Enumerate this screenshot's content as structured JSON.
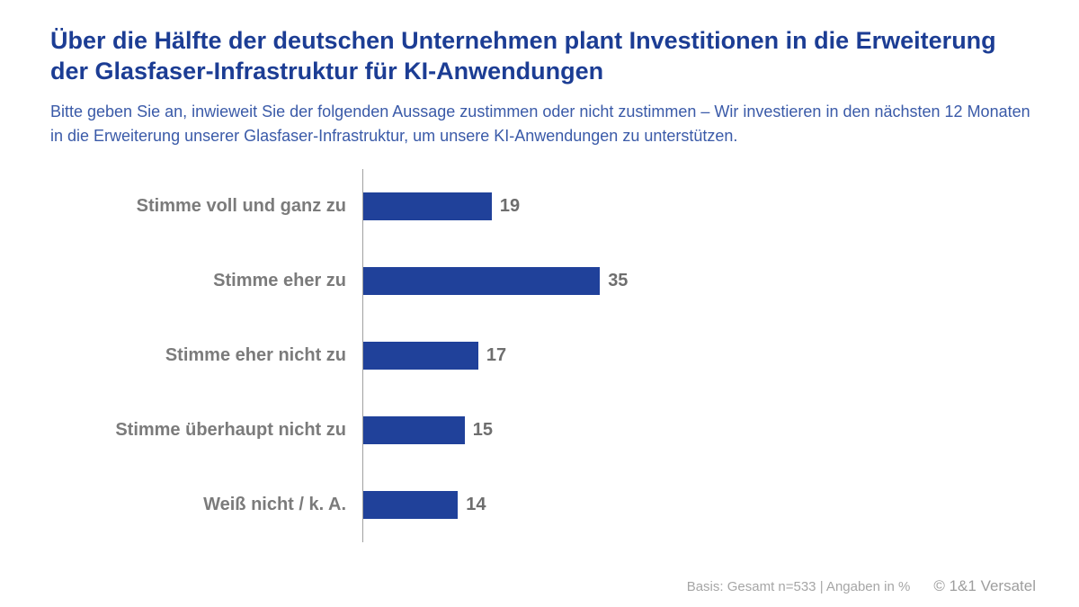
{
  "header": {
    "title": "Über die Hälfte der deutschen Unternehmen plant Investitionen in die Erweiterung der Glasfaser-Infrastruktur für KI-Anwendungen",
    "subtitle": "Bitte geben Sie an, inwieweit Sie der folgenden Aussage zustimmen oder nicht zustimmen – Wir investieren in den nächsten 12 Monaten in die Erweiterung unserer Glasfaser-Infrastruktur, um unsere KI-Anwendungen zu unterstützen."
  },
  "chart_data": {
    "type": "bar",
    "orientation": "horizontal",
    "categories": [
      "Stimme voll und ganz zu",
      "Stimme eher zu",
      "Stimme eher nicht zu",
      "Stimme überhaupt nicht zu",
      "Weiß nicht / k. A."
    ],
    "values": [
      19,
      35,
      17,
      15,
      14
    ],
    "xlim": [
      0,
      100
    ],
    "unit": "%",
    "grid": false,
    "legend": "none",
    "bar_color": "#20419a",
    "category_label_color": "#7b7b7b",
    "value_label_color": "#6e6e6e",
    "axis_line_color": "#a0a0a0"
  },
  "footer": {
    "basis": "Basis: Gesamt n=533 | Angaben in %",
    "copyright": "© 1&1 Versatel"
  },
  "colors": {
    "title_blue": "#1c3d94",
    "subtitle_blue": "#3a5aa8",
    "bar_blue": "#20419a",
    "label_gray": "#7b7b7b",
    "footer_gray": "#a6a6a6",
    "background": "#ffffff"
  }
}
